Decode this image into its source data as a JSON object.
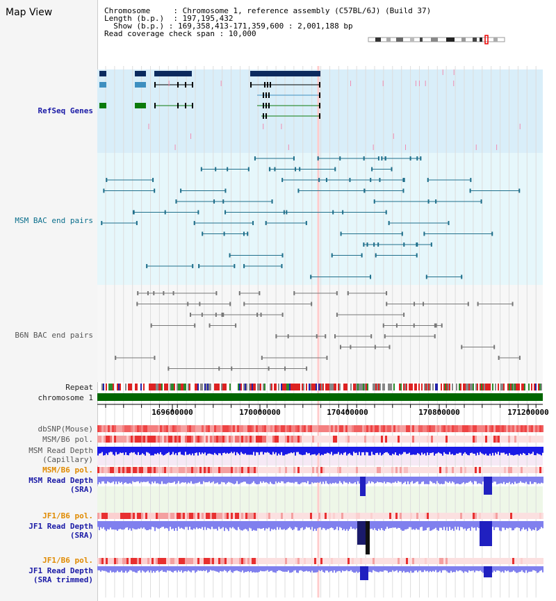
{
  "title": "Map View",
  "info": {
    "chromosome_label": "Chromosome",
    "chromosome_value": "Chromosome 1, reference assembly (C57BL/6J) (Build 37)",
    "length_label": "Length (b.p.)",
    "length_value": "197,195,432",
    "show_label": "Show (b.p.)",
    "show_value": "169,358,413-171,359,600 : 2,001,188 bp",
    "coverage_label": "Read coverage check span",
    "coverage_value": "10,000"
  },
  "tracks": {
    "refseq": "RefSeq Genes",
    "msm_bac": "MSM BAC end pairs",
    "b6n_bac": "B6N BAC end pairs",
    "repeat": "Repeat",
    "chromosome": "chromosome 1",
    "dbsnp": "dbSNP(Mouse)",
    "msm_b6_pol_1": "MSM/B6 pol.",
    "msm_depth_cap_1": "MSM Read Depth",
    "msm_depth_cap_2": "(Capillary)",
    "msm_b6_pol_2": "MSM/B6 pol.",
    "msm_depth_sra_1": "MSM Read Depth",
    "msm_depth_sra_2": "(SRA)",
    "jf1_b6_pol_1": "JF1/B6 pol.",
    "jf1_depth_sra_1": "JF1 Read Depth",
    "jf1_depth_sra_2": "(SRA)",
    "jf1_b6_pol_2": "JF1/B6 pol.",
    "jf1_depth_trim_1": "JF1 Read Depth",
    "jf1_depth_trim_2": "(SRA trimmed)"
  },
  "axis": {
    "ticks": [
      "169600000",
      "170000000",
      "170400000",
      "170800000",
      "171200000"
    ]
  },
  "colors": {
    "refseq_bg": "#d9eef9",
    "bac_bg": "#e6f7fb",
    "b6n_bg": "#f7f7f7",
    "gene_dark": "#0b2a5e",
    "gene_light": "#3d8fc0",
    "gene_green": "#0b7a0b",
    "bac_teal": "#1f6f8b",
    "b6n_gray": "#777777",
    "chrom_green": "#006600",
    "depth_blue": "#1a1ae6",
    "depth_light": "#8080ee",
    "snp_red": "#e83030",
    "pol_orange": "#e08a00",
    "grid": "#dddddd",
    "highlight": "#ffcccc"
  }
}
